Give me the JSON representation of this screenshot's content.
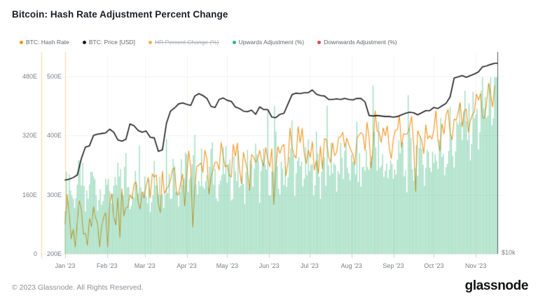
{
  "title": "Bitcoin: Hash Rate Adjustment Percent Change",
  "legend": [
    {
      "label": "BTC: Hash Rate",
      "color": "#f7931a",
      "disabled": false
    },
    {
      "label": "BTC: Price [USD]",
      "color": "#17191c",
      "disabled": false
    },
    {
      "label": "HR Percent Change (%)",
      "color": "#f7931a",
      "disabled": true
    },
    {
      "label": "Upwards Adjustment (%)",
      "color": "#2eb872",
      "disabled": false
    },
    {
      "label": "Downwards Adjustment (%)",
      "color": "#f4434c",
      "disabled": false
    }
  ],
  "footer": {
    "copyright": "© 2023 Glassnode. All Rights Reserved.",
    "brand": "glassnode"
  },
  "axes": {
    "left_outer": {
      "ticks": [
        {
          "label": "0",
          "value": 0
        },
        {
          "label": "160E",
          "value": 160
        },
        {
          "label": "320E",
          "value": 320
        },
        {
          "label": "480E",
          "value": 480
        }
      ]
    },
    "left_inner": {
      "ticks": [
        {
          "label": "200E",
          "value": 200
        },
        {
          "label": "300E",
          "value": 300
        },
        {
          "label": "400E",
          "value": 400
        },
        {
          "label": "500E",
          "value": 500
        }
      ]
    },
    "right_price": {
      "ticks": [
        {
          "label": "$10k",
          "value": 10
        }
      ]
    },
    "x_months": [
      "Jan '23",
      "Feb '23",
      "Mar '23",
      "Apr '23",
      "May '23",
      "Jun '23",
      "Jul '23",
      "Aug '23",
      "Sep '23",
      "Oct '23",
      "Nov '23"
    ]
  },
  "chart_data": {
    "type": "mixed",
    "title": "Bitcoin: Hash Rate Adjustment Percent Change",
    "x_start": "2023-01-01",
    "x_end": "2023-11-17",
    "sample_interval_days": 3,
    "grid": "faint horizontal + monthly vertical",
    "legend_position": "top-left",
    "series": [
      {
        "name": "Upwards Adjustment (%)",
        "type": "bar",
        "color": "#2eb872",
        "axis": "left_outer",
        "axis_range": [
          0,
          480
        ],
        "unit": "E",
        "values": [
          165,
          210,
          140,
          185,
          230,
          120,
          175,
          205,
          150,
          190,
          160,
          180,
          145,
          215,
          170,
          235,
          155,
          200,
          175,
          190,
          195,
          160,
          240,
          180,
          150,
          220,
          185,
          250,
          170,
          205,
          230,
          185,
          260,
          200,
          245,
          175,
          255,
          215,
          190,
          235,
          225,
          190,
          255,
          210,
          165,
          240,
          205,
          260,
          185,
          230,
          235,
          200,
          265,
          180,
          250,
          215,
          270,
          195,
          240,
          220,
          245,
          205,
          270,
          190,
          255,
          225,
          275,
          210,
          250,
          230,
          255,
          215,
          280,
          200,
          260,
          230,
          285,
          220,
          265,
          240,
          210,
          265,
          225,
          290,
          210,
          270,
          245,
          295,
          230,
          275,
          250,
          285,
          240,
          310,
          260,
          330,
          280,
          350,
          300,
          370,
          320,
          380,
          340,
          420,
          390,
          450,
          480
        ]
      },
      {
        "name": "BTC: Hash Rate",
        "type": "line",
        "color": "#f7931a",
        "axis": "left_inner",
        "axis_range": [
          200,
          500
        ],
        "unit": "E",
        "values": [
          250,
          268,
          242,
          255,
          275,
          235,
          260,
          280,
          252,
          246,
          270,
          285,
          262,
          295,
          310,
          278,
          300,
          318,
          288,
          305,
          315,
          295,
          330,
          285,
          340,
          310,
          325,
          345,
          300,
          335,
          330,
          345,
          312,
          350,
          338,
          360,
          330,
          355,
          342,
          365,
          350,
          330,
          365,
          345,
          372,
          340,
          368,
          355,
          375,
          348,
          360,
          378,
          345,
          370,
          385,
          355,
          380,
          362,
          388,
          370,
          375,
          390,
          358,
          382,
          395,
          365,
          388,
          372,
          398,
          380,
          385,
          368,
          395,
          405,
          375,
          398,
          382,
          408,
          388,
          400,
          378,
          395,
          410,
          380,
          402,
          415,
          385,
          408,
          392,
          418,
          400,
          410,
          392,
          420,
          435,
          405,
          428,
          440,
          415,
          445,
          425,
          440,
          460,
          430,
          455,
          470,
          485
        ]
      },
      {
        "name": "BTC: Price [USD]",
        "type": "line",
        "color": "#17191c",
        "axis": "right_log",
        "unit": "USD (thousands)",
        "values": [
          16.6,
          16.7,
          16.9,
          17.2,
          19.3,
          20.9,
          21.1,
          22.7,
          22.9,
          23.0,
          23.1,
          23.7,
          23.2,
          22.0,
          21.8,
          22.1,
          24.6,
          24.3,
          23.5,
          23.2,
          23.4,
          22.4,
          22.3,
          20.3,
          20.5,
          24.7,
          26.9,
          27.5,
          28.3,
          28.5,
          28.2,
          28.0,
          29.9,
          30.4,
          30.0,
          29.4,
          27.8,
          27.6,
          29.2,
          29.5,
          29.0,
          28.8,
          27.7,
          27.4,
          26.9,
          26.8,
          27.1,
          26.3,
          27.7,
          27.2,
          27.2,
          25.8,
          25.7,
          26.3,
          26.5,
          28.3,
          30.2,
          30.5,
          30.4,
          30.6,
          30.6,
          31.2,
          30.3,
          30.0,
          29.9,
          29.2,
          29.2,
          29.3,
          29.2,
          29.4,
          29.2,
          29.1,
          29.4,
          29.4,
          28.7,
          26.1,
          26.0,
          26.1,
          26.0,
          25.9,
          25.9,
          25.8,
          25.9,
          26.2,
          26.5,
          26.7,
          26.6,
          26.2,
          26.6,
          27.0,
          27.0,
          27.6,
          27.4,
          27.9,
          28.4,
          29.7,
          33.9,
          34.2,
          34.5,
          34.1,
          34.5,
          34.9,
          35.4,
          36.7,
          36.9,
          37.3,
          37.6
        ]
      },
      {
        "name": "HR Percent Change (%)",
        "type": "line",
        "color": "#f7931a",
        "hidden": true,
        "values": []
      },
      {
        "name": "Downwards Adjustment (%)",
        "type": "bar",
        "color": "#f4434c",
        "hidden": false,
        "values": []
      }
    ]
  }
}
